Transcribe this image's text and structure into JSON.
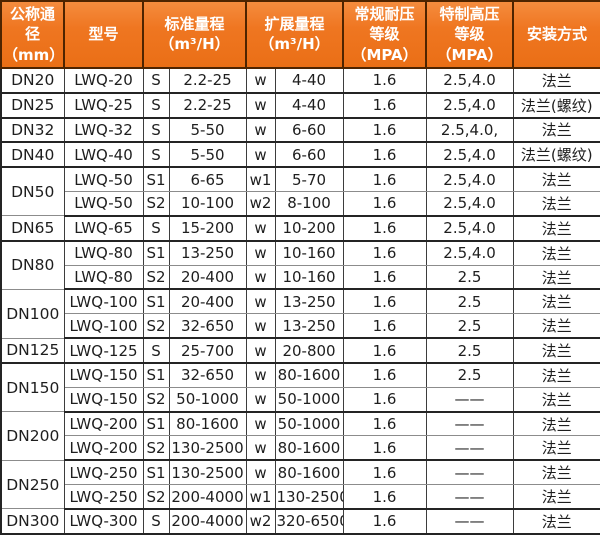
{
  "colors": {
    "header_bg": "#EF7621",
    "header_text": "#FFFFFF",
    "header_border": "#4E2400",
    "body_text": "#1E1E1E",
    "grid_dark": "#242424",
    "grid_light": "#8C8C8C"
  },
  "table": {
    "header": {
      "col_dn": {
        "l1": "公称通径",
        "l2": "（mm）"
      },
      "col_model": {
        "l1": "型号"
      },
      "col_std": {
        "l1": "标准量程",
        "l2": "（m³/H）"
      },
      "col_ext": {
        "l1": "扩展量程",
        "l2": "（m³/H）"
      },
      "col_pressure": {
        "l1": "常规耐压",
        "l2": "等级（MPA）"
      },
      "col_high_pressure": {
        "l1": "特制高压",
        "l2": "等级（MPA）"
      },
      "col_install": {
        "l1": "安装方式"
      }
    },
    "groups": [
      {
        "dn": "DN20",
        "rows": [
          {
            "model": "LWQ-20",
            "std_code": "S",
            "std_range": "2.2-25",
            "ext_code": "w",
            "ext_range": "4-40",
            "pressure": "1.6",
            "high_pressure": "2.5,4.0",
            "install": "法兰"
          }
        ]
      },
      {
        "dn": "DN25",
        "rows": [
          {
            "model": "LWQ-25",
            "std_code": "S",
            "std_range": "2.2-25",
            "ext_code": "w",
            "ext_range": "4-40",
            "pressure": "1.6",
            "high_pressure": "2.5,4.0",
            "install": "法兰(螺纹)"
          }
        ]
      },
      {
        "dn": "DN32",
        "rows": [
          {
            "model": "LWQ-32",
            "std_code": "S",
            "std_range": "5-50",
            "ext_code": "w",
            "ext_range": "6-60",
            "pressure": "1.6",
            "high_pressure": "2.5,4.0,",
            "install": "法兰"
          }
        ]
      },
      {
        "dn": "DN40",
        "rows": [
          {
            "model": "LWQ-40",
            "std_code": "S",
            "std_range": "5-50",
            "ext_code": "w",
            "ext_range": "6-60",
            "pressure": "1.6",
            "high_pressure": "2.5,4.0",
            "install": "法兰(螺纹)"
          }
        ]
      },
      {
        "dn": "DN50",
        "rows": [
          {
            "model": "LWQ-50",
            "std_code": "S1",
            "std_range": "6-65",
            "ext_code": "w1",
            "ext_range": "5-70",
            "pressure": "1.6",
            "high_pressure": "2.5,4.0",
            "install": "法兰"
          },
          {
            "model": "LWQ-50",
            "std_code": "S2",
            "std_range": "10-100",
            "ext_code": "w2",
            "ext_range": "8-100",
            "pressure": "1.6",
            "high_pressure": "2.5,4.0",
            "install": "法兰"
          }
        ]
      },
      {
        "dn": "DN65",
        "rows": [
          {
            "model": "LWQ-65",
            "std_code": "S",
            "std_range": "15-200",
            "ext_code": "w",
            "ext_range": "10-200",
            "pressure": "1.6",
            "high_pressure": "2.5,4.0",
            "install": "法兰"
          }
        ]
      },
      {
        "dn": "DN80",
        "rows": [
          {
            "model": "LWQ-80",
            "std_code": "S1",
            "std_range": "13-250",
            "ext_code": "w",
            "ext_range": "10-160",
            "pressure": "1.6",
            "high_pressure": "2.5,4.0",
            "install": "法兰"
          },
          {
            "model": "LWQ-80",
            "std_code": "S2",
            "std_range": "20-400",
            "ext_code": "w",
            "ext_range": "10-160",
            "pressure": "1.6",
            "high_pressure": "2.5",
            "install": "法兰"
          }
        ]
      },
      {
        "dn": "DN100",
        "rows": [
          {
            "model": "LWQ-100",
            "std_code": "S1",
            "std_range": "20-400",
            "ext_code": "w",
            "ext_range": "13-250",
            "pressure": "1.6",
            "high_pressure": "2.5",
            "install": "法兰"
          },
          {
            "model": "LWQ-100",
            "std_code": "S2",
            "std_range": "32-650",
            "ext_code": "w",
            "ext_range": "13-250",
            "pressure": "1.6",
            "high_pressure": "2.5",
            "install": "法兰"
          }
        ]
      },
      {
        "dn": "DN125",
        "rows": [
          {
            "model": "LWQ-125",
            "std_code": "S",
            "std_range": "25-700",
            "ext_code": "w",
            "ext_range": "20-800",
            "pressure": "1.6",
            "high_pressure": "2.5",
            "install": "法兰"
          }
        ]
      },
      {
        "dn": "DN150",
        "rows": [
          {
            "model": "LWQ-150",
            "std_code": "S1",
            "std_range": "32-650",
            "ext_code": "w",
            "ext_range": "80-1600",
            "pressure": "1.6",
            "high_pressure": "2.5",
            "install": "法兰"
          },
          {
            "model": "LWQ-150",
            "std_code": "S2",
            "std_range": "50-1000",
            "ext_code": "w",
            "ext_range": "50-1000",
            "pressure": "1.6",
            "high_pressure": "——",
            "install": "法兰"
          }
        ]
      },
      {
        "dn": "DN200",
        "rows": [
          {
            "model": "LWQ-200",
            "std_code": "S1",
            "std_range": "80-1600",
            "ext_code": "w",
            "ext_range": "50-1000",
            "pressure": "1.6",
            "high_pressure": "——",
            "install": "法兰"
          },
          {
            "model": "LWQ-200",
            "std_code": "S2",
            "std_range": "130-2500",
            "ext_code": "w",
            "ext_range": "80-1600",
            "pressure": "1.6",
            "high_pressure": "——",
            "install": "法兰"
          }
        ]
      },
      {
        "dn": "DN250",
        "rows": [
          {
            "model": "LWQ-250",
            "std_code": "S1",
            "std_range": "130-2500",
            "ext_code": "w",
            "ext_range": "80-1600",
            "pressure": "1.6",
            "high_pressure": "——",
            "install": "法兰"
          },
          {
            "model": "LWQ-250",
            "std_code": "S2",
            "std_range": "200-4000",
            "ext_code": "w1",
            "ext_range": "130-2500",
            "pressure": "1.6",
            "high_pressure": "——",
            "install": "法兰"
          }
        ]
      },
      {
        "dn": "DN300",
        "rows": [
          {
            "model": "LWQ-300",
            "std_code": "S",
            "std_range": "200-4000",
            "ext_code": "w2",
            "ext_range": "320-6500",
            "pressure": "1.6",
            "high_pressure": "——",
            "install": "法兰"
          }
        ]
      }
    ]
  }
}
